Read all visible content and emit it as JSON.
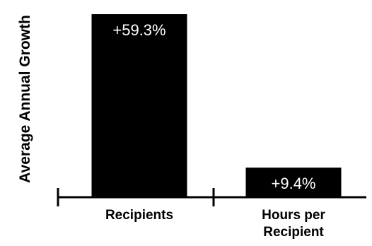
{
  "chart_data": {
    "type": "bar",
    "title": "",
    "xlabel": "",
    "ylabel": "Average Annual Growth",
    "categories": [
      [
        "Recipients"
      ],
      [
        "Hours per",
        "Recipient"
      ]
    ],
    "values": [
      59.3,
      9.4
    ],
    "data_labels": [
      "+59.3%",
      "+9.4%"
    ],
    "ylim": [
      0,
      60
    ],
    "grid": false,
    "bar_color": "#000000",
    "label_color": "#ffffff"
  }
}
